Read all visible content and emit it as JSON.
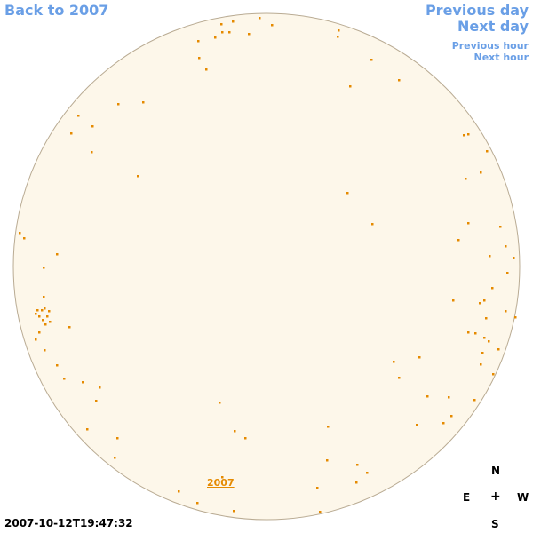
{
  "nav": {
    "back_label": "Back to 2007",
    "prev_day_label": "Previous day",
    "next_day_label": "Next day",
    "prev_hour_label": "Previous hour",
    "next_hour_label": "Next hour"
  },
  "compass": {
    "north": "N",
    "east": "E",
    "center": "+",
    "west": "W",
    "south": "S"
  },
  "timestamp": "2007-10-12T19:47:32",
  "year_marker": "2007",
  "colors": {
    "link": "#6a9fe6",
    "sky_fill": "#fdf7ea",
    "sky_border": "#b9ab93",
    "star": "#e58a00"
  },
  "icons": {
    "star_marker": "dot-icon"
  }
}
